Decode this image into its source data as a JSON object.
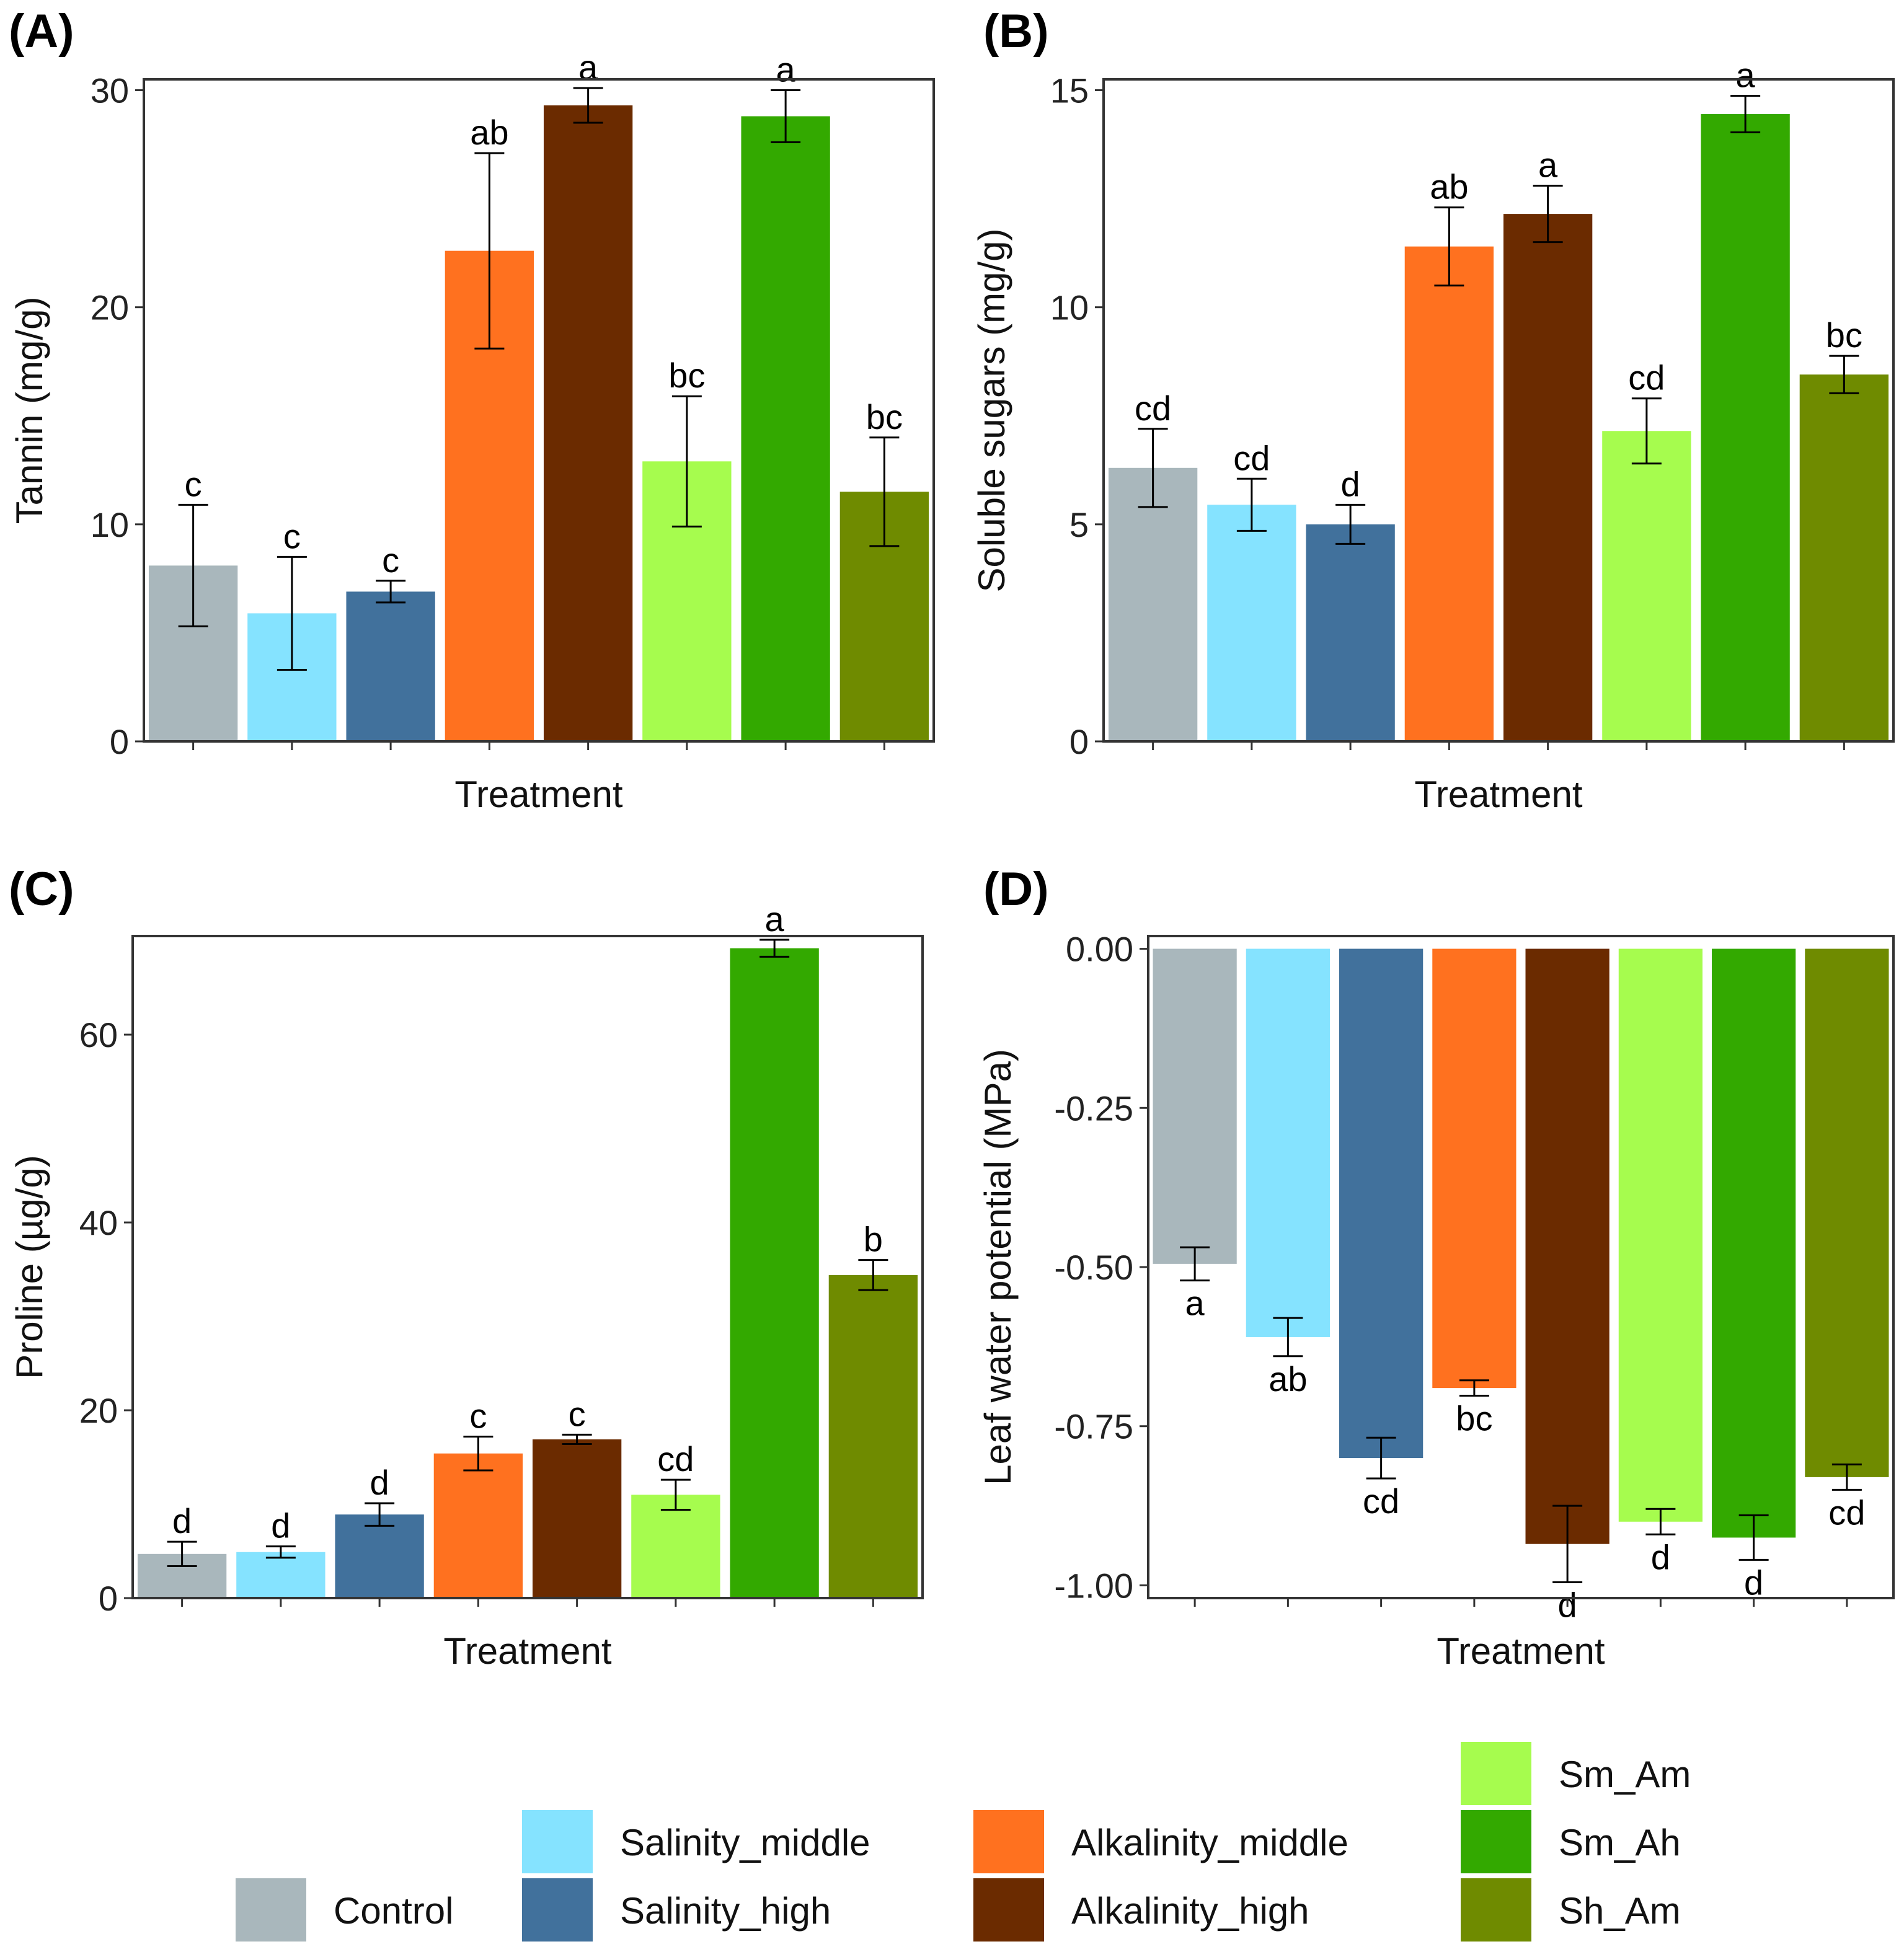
{
  "figure": {
    "treatments": [
      "Control",
      "Salinity_middle",
      "Salinity_high",
      "Alkalinity_middle",
      "Alkalinity_high",
      "Sm_Am",
      "Sm_Ah",
      "Sh_Am"
    ],
    "colors": [
      "#A9B7BC",
      "#85E3FF",
      "#41719C",
      "#FF711F",
      "#6B2B00",
      "#A6FC4E",
      "#33A900",
      "#6F8B00"
    ]
  },
  "chart_data": [
    {
      "type": "bar",
      "panel_label": "(A)",
      "xlabel": "Treatment",
      "ylabel": "Tannin (mg/g)",
      "ylim": [
        0,
        30.5
      ],
      "yticks": [
        0,
        10,
        20,
        30
      ],
      "tick_labels": [
        "0",
        "10",
        "20",
        "30"
      ],
      "categories": [
        "Control",
        "Salinity_middle",
        "Salinity_high",
        "Alkalinity_middle",
        "Alkalinity_high",
        "Sm_Am",
        "Sm_Ah",
        "Sh_Am"
      ],
      "values": [
        8.1,
        5.9,
        6.9,
        22.6,
        29.3,
        12.9,
        28.8,
        11.5
      ],
      "errors": [
        2.8,
        2.6,
        0.5,
        4.5,
        0.8,
        3.0,
        1.2,
        2.5
      ],
      "letters": [
        "c",
        "c",
        "c",
        "ab",
        "a",
        "bc",
        "a",
        "bc"
      ]
    },
    {
      "type": "bar",
      "panel_label": "(B)",
      "xlabel": "Treatment",
      "ylabel": "Soluble sugars (mg/g)",
      "ylim": [
        0,
        15.25
      ],
      "yticks": [
        0,
        5,
        10,
        15
      ],
      "tick_labels": [
        "0",
        "5",
        "10",
        "15"
      ],
      "categories": [
        "Control",
        "Salinity_middle",
        "Salinity_high",
        "Alkalinity_middle",
        "Alkalinity_high",
        "Sm_Am",
        "Sm_Ah",
        "Sh_Am"
      ],
      "values": [
        6.3,
        5.45,
        5.0,
        11.4,
        12.15,
        7.15,
        14.45,
        8.45
      ],
      "errors": [
        0.9,
        0.6,
        0.45,
        0.9,
        0.65,
        0.75,
        0.42,
        0.43
      ],
      "letters": [
        "cd",
        "cd",
        "d",
        "ab",
        "a",
        "cd",
        "a",
        "bc"
      ]
    },
    {
      "type": "bar",
      "panel_label": "(C)",
      "xlabel": "Treatment",
      "ylabel": "Proline (µg/g)",
      "ylim": [
        0,
        70.5
      ],
      "yticks": [
        0,
        20,
        40,
        60
      ],
      "tick_labels": [
        "0",
        "20",
        "40",
        "60"
      ],
      "categories": [
        "Control",
        "Salinity_middle",
        "Salinity_high",
        "Alkalinity_middle",
        "Alkalinity_high",
        "Sm_Am",
        "Sm_Ah",
        "Sh_Am"
      ],
      "values": [
        4.7,
        4.9,
        8.9,
        15.4,
        16.9,
        11.0,
        69.2,
        34.4
      ],
      "errors": [
        1.3,
        0.6,
        1.2,
        1.8,
        0.5,
        1.6,
        0.9,
        1.6
      ],
      "letters": [
        "d",
        "d",
        "d",
        "c",
        "c",
        "cd",
        "a",
        "b"
      ]
    },
    {
      "type": "bar",
      "panel_label": "(D)",
      "xlabel": "Treatment",
      "ylabel": "Leaf water potential (MPa)",
      "ylim": [
        -1.02,
        0.02
      ],
      "yticks": [
        0,
        -0.25,
        -0.5,
        -0.75,
        -1.0
      ],
      "tick_labels": [
        "0.00",
        "-0.25",
        "-0.50",
        "-0.75",
        "-1.00"
      ],
      "categories": [
        "Control",
        "Salinity_middle",
        "Salinity_high",
        "Alkalinity_middle",
        "Alkalinity_high",
        "Sm_Am",
        "Sm_Ah",
        "Sh_Am"
      ],
      "values": [
        -0.495,
        -0.61,
        -0.8,
        -0.69,
        -0.935,
        -0.9,
        -0.925,
        -0.83
      ],
      "errors": [
        0.026,
        0.03,
        0.032,
        0.012,
        0.06,
        0.02,
        0.035,
        0.02
      ],
      "letters": [
        "a",
        "ab",
        "cd",
        "bc",
        "d",
        "d",
        "d",
        "cd"
      ]
    }
  ],
  "legend": {
    "entries": [
      "Control",
      "Salinity_middle",
      "Salinity_high",
      "Alkalinity_middle",
      "Alkalinity_high",
      "Sm_Am",
      "Sm_Ah",
      "Sh_Am"
    ]
  }
}
